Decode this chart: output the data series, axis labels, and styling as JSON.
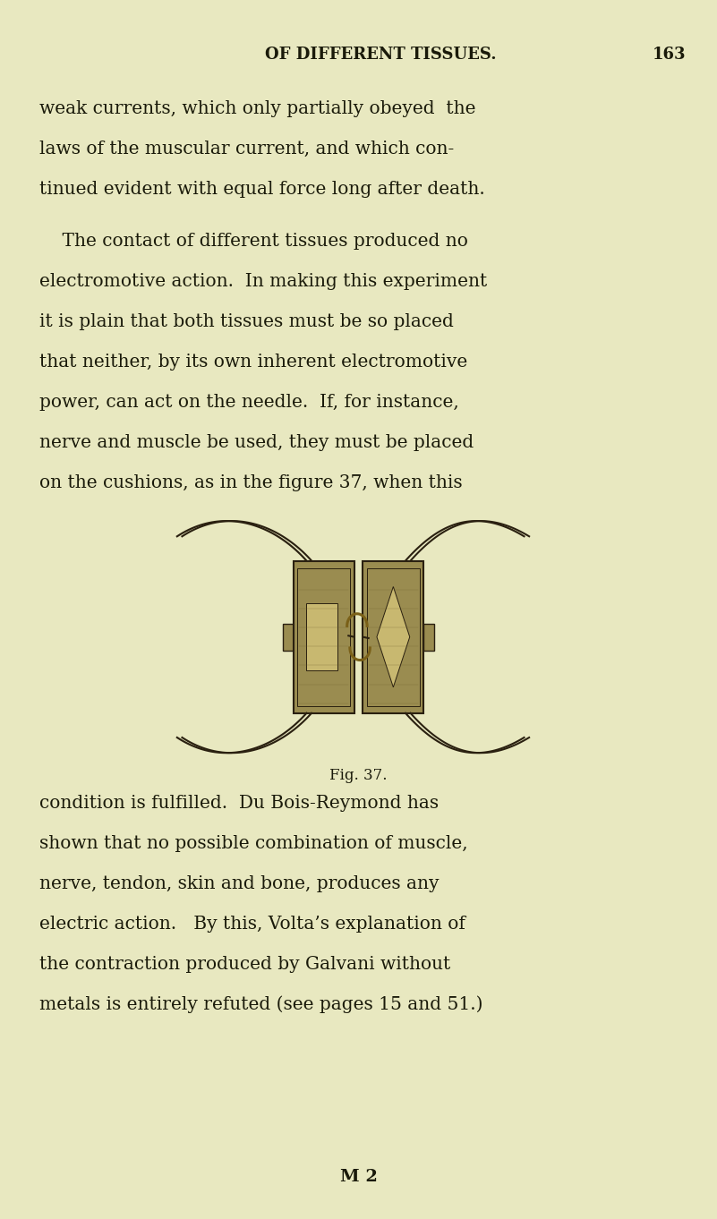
{
  "bg_color": "#e8e8c0",
  "text_color": "#1a1a0a",
  "page_width": 8.01,
  "page_height": 13.62,
  "header_text": "OF DIFFERENT TISSUES.",
  "page_number": "163",
  "lines1": [
    "weak currents, which only partially obeyed  the",
    "laws of the muscular current, and which con-",
    "tinued evident with equal force long after death."
  ],
  "lines2": [
    "    The contact of different tissues produced no",
    "electromotive action.  In making this experiment",
    "it is plain that both tissues must be so placed",
    "that neither, by its own inherent electromotive",
    "power, can act on the needle.  If, for instance,",
    "nerve and muscle be used, they must be placed",
    "on the cushions, as in the figure 37, when this"
  ],
  "fig_caption": "Fig. 37.",
  "lines3": [
    "condition is fulfilled.  Du Bois-Reymond has",
    "shown that no possible combination of muscle,",
    "nerve, tendon, skin and bone, produces any",
    "electric action.   By this, Volta’s explanation of",
    "the contraction produced by Galvani without",
    "metals is entirely refuted (see pages 15 and 51.)"
  ],
  "footer_text": "M 2",
  "header_fontsize": 13,
  "body_fontsize": 14.5,
  "fig_fontsize": 12,
  "footer_fontsize": 14
}
